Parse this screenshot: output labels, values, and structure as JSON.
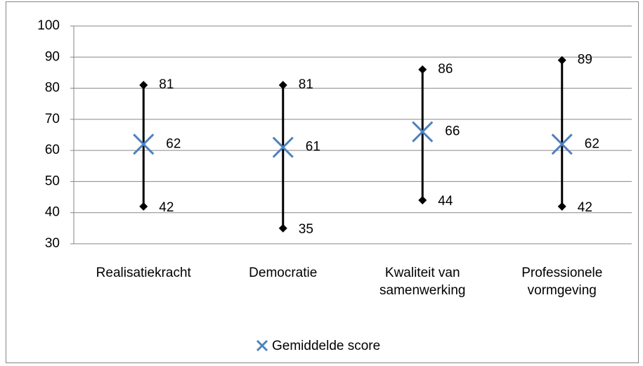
{
  "chart_data": {
    "type": "stock",
    "categories": [
      "Realisatiekracht",
      "Democratie",
      "Kwaliteit van samenwerking",
      "Professionele vormgeving"
    ],
    "series": [
      {
        "color": "#000000",
        "values": [
          81,
          81,
          86,
          89
        ]
      },
      {
        "color": "#000000",
        "values": [
          42,
          35,
          44,
          42
        ]
      },
      {
        "name": "Gemiddelde score",
        "color": "#4f81bd",
        "values": [
          62,
          61,
          66,
          62
        ]
      }
    ],
    "ylim": [
      30,
      100
    ],
    "yticks": [
      30,
      40,
      50,
      60,
      70,
      80,
      90,
      100
    ],
    "grid": true,
    "legend": "bottom"
  }
}
